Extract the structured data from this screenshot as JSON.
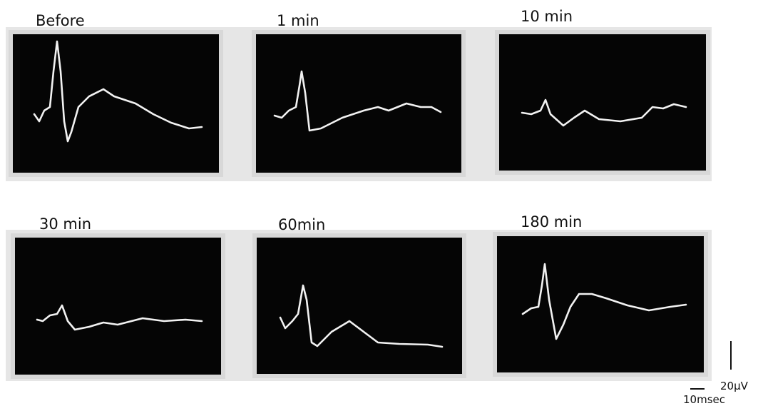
{
  "panels": [
    {
      "label": "Before"
    },
    {
      "label": "1 min"
    },
    {
      "label": "10 min"
    },
    {
      "label": "30 min"
    },
    {
      "label": "60min"
    },
    {
      "label": "180 min"
    }
  ],
  "scale_bar": {
    "vertical_label": "20µV",
    "horizontal_label": "10msec"
  }
}
